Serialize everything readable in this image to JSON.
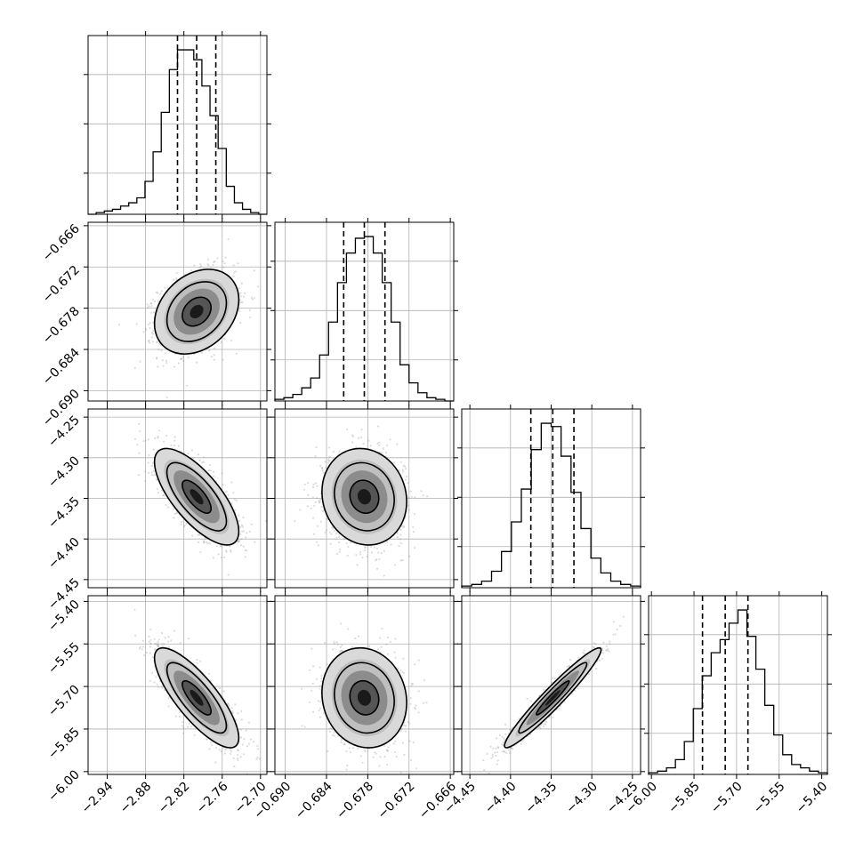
{
  "chart_data": {
    "type": "corner",
    "parameters": [
      {
        "range": [
          -2.97,
          -2.69
        ],
        "ticks": [
          -2.94,
          -2.88,
          -2.82,
          -2.76,
          -2.7
        ],
        "tick_labels": [
          "−2.94",
          "−2.88",
          "−2.82",
          "−2.76",
          "−2.70"
        ],
        "quantiles": [
          -2.83,
          -2.8,
          -2.77
        ],
        "mean": -2.8,
        "sd": 0.03
      },
      {
        "range": [
          -0.6915,
          -0.6655
        ],
        "ticks": [
          -0.69,
          -0.684,
          -0.678,
          -0.672,
          -0.666
        ],
        "tick_labels": [
          "−0.690",
          "−0.684",
          "−0.678",
          "−0.672",
          "−0.666"
        ],
        "quantiles": [
          -0.6815,
          -0.6785,
          -0.6755
        ],
        "mean": -0.6785,
        "sd": 0.0028
      },
      {
        "range": [
          -4.46,
          -4.24
        ],
        "ticks": [
          -4.45,
          -4.4,
          -4.35,
          -4.3,
          -4.25
        ],
        "tick_labels": [
          "−4.45",
          "−4.40",
          "−4.35",
          "−4.30",
          "−4.25"
        ],
        "quantiles": [
          -4.375,
          -4.348,
          -4.322
        ],
        "mean": -4.348,
        "sd": 0.027
      },
      {
        "range": [
          -6.01,
          -5.38
        ],
        "ticks": [
          -6.0,
          -5.85,
          -5.7,
          -5.55,
          -5.4
        ],
        "tick_labels": [
          "−6.00",
          "−5.85",
          "−5.70",
          "−5.55",
          "−5.40"
        ],
        "quantiles": [
          -5.82,
          -5.74,
          -5.66
        ],
        "mean": -5.74,
        "sd": 0.08
      }
    ],
    "histograms": [
      [
        0,
        1,
        2,
        3,
        5,
        7,
        10,
        20,
        38,
        62,
        88,
        100,
        100,
        94,
        78,
        60,
        40,
        17,
        7,
        3,
        1,
        0
      ],
      [
        1,
        2,
        4,
        8,
        14,
        28,
        48,
        72,
        90,
        99,
        100,
        90,
        72,
        48,
        22,
        11,
        5,
        2,
        1,
        0
      ],
      [
        1,
        2,
        4,
        10,
        22,
        40,
        60,
        84,
        100,
        98,
        80,
        58,
        36,
        18,
        9,
        4,
        2,
        1
      ],
      [
        1,
        2,
        4,
        9,
        20,
        40,
        60,
        74,
        82,
        92,
        100,
        84,
        64,
        42,
        24,
        12,
        6,
        4,
        2,
        1
      ]
    ],
    "correlations": [
      {
        "x": 0,
        "y": 1,
        "rho": 0.28
      },
      {
        "x": 0,
        "y": 2,
        "rho": -0.72
      },
      {
        "x": 1,
        "y": 2,
        "rho": -0.1
      },
      {
        "x": 0,
        "y": 3,
        "rho": -0.8
      },
      {
        "x": 1,
        "y": 3,
        "rho": -0.1
      },
      {
        "x": 2,
        "y": 3,
        "rho": 0.96
      }
    ],
    "grid": true,
    "contour_levels": 3,
    "colors": {
      "line": "#000000",
      "points": "#9a9a9a",
      "grid": "#b0b0b0"
    }
  }
}
